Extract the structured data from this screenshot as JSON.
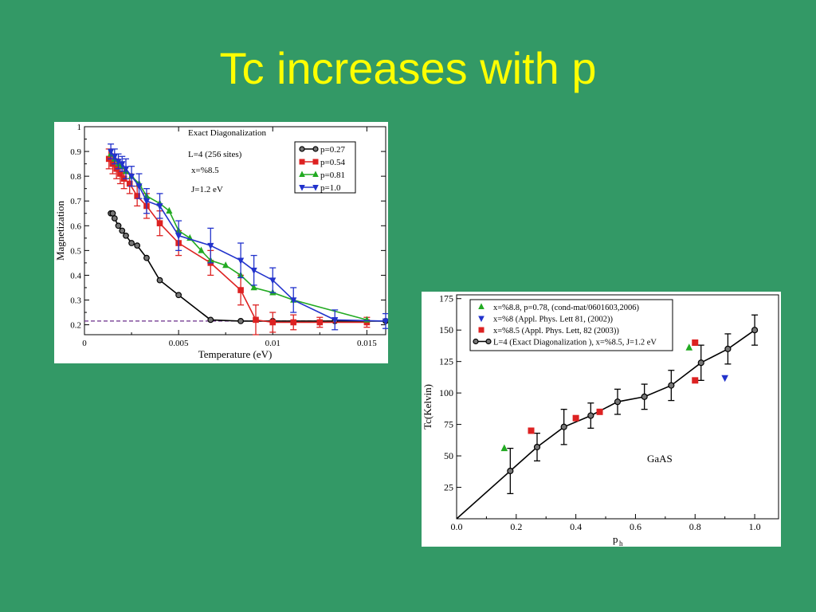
{
  "slide": {
    "title": "Tc increases with p"
  },
  "chart_data": [
    {
      "type": "line",
      "title": "Exact Diagonalization",
      "annotations": [
        "L=4 (256 sites)",
        "x=%8.5",
        "J=1.2 eV"
      ],
      "xlabel": "Temperature (eV)",
      "ylabel": "Magnetization",
      "xlim": [
        0,
        0.016
      ],
      "ylim": [
        0.16,
        1.0
      ],
      "xticks": [
        0,
        0.005,
        0.01,
        0.015
      ],
      "xtick_labels": [
        "0",
        "0.005",
        "0.01",
        "0.015"
      ],
      "yticks": [
        0.2,
        0.3,
        0.4,
        0.5,
        0.6,
        0.7,
        0.8,
        0.9,
        1.0
      ],
      "ytick_labels": [
        "0.2",
        "0.3",
        "0.4",
        "0.5",
        "0.6",
        "0.7",
        "0.8",
        "0.9",
        "1"
      ],
      "reference_line": {
        "y": 0.215,
        "style": "dashed",
        "color": "#6a2c8a"
      },
      "legend": {
        "placement": "top-right"
      },
      "series": [
        {
          "name": "p=0.27",
          "color": "#000000",
          "marker": "circle",
          "x": [
            0.0014,
            0.0015,
            0.0016,
            0.0018,
            0.002,
            0.0022,
            0.0025,
            0.0028,
            0.0033,
            0.004,
            0.005,
            0.0067,
            0.0083,
            0.01,
            0.0133,
            0.016
          ],
          "y": [
            0.65,
            0.65,
            0.63,
            0.6,
            0.58,
            0.56,
            0.53,
            0.52,
            0.47,
            0.38,
            0.32,
            0.22,
            0.215,
            0.215,
            0.215,
            0.215
          ]
        },
        {
          "name": "p=0.54",
          "color": "#dd2222",
          "marker": "square",
          "x": [
            0.0013,
            0.0015,
            0.0017,
            0.0019,
            0.0021,
            0.0024,
            0.0028,
            0.0033,
            0.004,
            0.005,
            0.0067,
            0.0083,
            0.0091,
            0.01,
            0.0111,
            0.0125,
            0.015
          ],
          "y": [
            0.87,
            0.85,
            0.83,
            0.81,
            0.79,
            0.77,
            0.72,
            0.68,
            0.61,
            0.53,
            0.45,
            0.34,
            0.22,
            0.21,
            0.21,
            0.21,
            0.21
          ],
          "err": [
            0.04,
            0.04,
            0.04,
            0.04,
            0.04,
            0.04,
            0.04,
            0.05,
            0.05,
            0.05,
            0.05,
            0.06,
            0.06,
            0.04,
            0.03,
            0.02,
            0.02
          ]
        },
        {
          "name": "p=0.81",
          "color": "#22aa22",
          "marker": "triangle-up",
          "x": [
            0.0014,
            0.0016,
            0.0018,
            0.002,
            0.0022,
            0.0025,
            0.0029,
            0.0033,
            0.004,
            0.0045,
            0.005,
            0.0056,
            0.0062,
            0.0067,
            0.0075,
            0.0083,
            0.009,
            0.01,
            0.0111,
            0.015
          ],
          "y": [
            0.89,
            0.87,
            0.85,
            0.84,
            0.82,
            0.8,
            0.77,
            0.72,
            0.69,
            0.66,
            0.58,
            0.55,
            0.5,
            0.46,
            0.44,
            0.4,
            0.35,
            0.33,
            0.3,
            0.22
          ]
        },
        {
          "name": "p=1.0",
          "color": "#2233cc",
          "marker": "triangle-down",
          "x": [
            0.0014,
            0.0016,
            0.0018,
            0.002,
            0.0022,
            0.0025,
            0.0029,
            0.0033,
            0.004,
            0.005,
            0.0067,
            0.0083,
            0.009,
            0.01,
            0.0111,
            0.0133,
            0.016
          ],
          "y": [
            0.9,
            0.88,
            0.86,
            0.85,
            0.83,
            0.8,
            0.76,
            0.7,
            0.68,
            0.56,
            0.52,
            0.46,
            0.42,
            0.38,
            0.3,
            0.22,
            0.215
          ],
          "err": [
            0.03,
            0.03,
            0.03,
            0.03,
            0.04,
            0.04,
            0.05,
            0.05,
            0.05,
            0.06,
            0.07,
            0.07,
            0.06,
            0.05,
            0.05,
            0.04,
            0.03
          ]
        }
      ]
    },
    {
      "type": "line",
      "xlabel": "p",
      "xlabel_sub": "h",
      "ylabel": "Tc(Kelvin)",
      "annotation": "GaAS",
      "xlim": [
        0,
        1.08
      ],
      "ylim": [
        0,
        178
      ],
      "xticks": [
        0,
        0.2,
        0.4,
        0.6,
        0.8,
        1.0
      ],
      "xtick_labels": [
        "0.0",
        "0.2",
        "0.4",
        "0.6",
        "0.8",
        "1.0"
      ],
      "yticks": [
        25,
        50,
        75,
        100,
        125,
        150,
        175
      ],
      "ytick_labels": [
        "25",
        "50",
        "75",
        "100",
        "125",
        "150",
        "175"
      ],
      "legend": {
        "placement": "top-left"
      },
      "series": [
        {
          "name": "L=4 (Exact Diagonalization ), x=%8.5, J=1.2 eV",
          "color": "#000000",
          "marker": "circle",
          "x": [
            0,
            0.18,
            0.27,
            0.36,
            0.45,
            0.54,
            0.63,
            0.72,
            0.82,
            0.91,
            1.0
          ],
          "y": [
            0,
            38,
            57,
            73,
            82,
            93,
            97,
            106,
            124,
            135,
            150
          ],
          "err": [
            0,
            18,
            11,
            14,
            10,
            10,
            10,
            12,
            14,
            12,
            12
          ]
        },
        {
          "name": "x=%8.8, p=0.78, (cond-mat/0601603,2006)",
          "color": "#22aa22",
          "marker": "triangle-up",
          "x": [
            0.16,
            0.78
          ],
          "y": [
            56,
            136
          ]
        },
        {
          "name": "x=%8 (Appl. Phys. Lett  81, (2002))",
          "color": "#2233cc",
          "marker": "triangle-down",
          "x": [
            0.9
          ],
          "y": [
            112
          ]
        },
        {
          "name": "x=%8.5 (Appl. Phys. Lett, 82 (2003))",
          "color": "#dd2222",
          "marker": "square",
          "x": [
            0.25,
            0.4,
            0.48,
            0.8,
            0.8
          ],
          "y": [
            70,
            80,
            85,
            140,
            110
          ]
        }
      ]
    }
  ]
}
